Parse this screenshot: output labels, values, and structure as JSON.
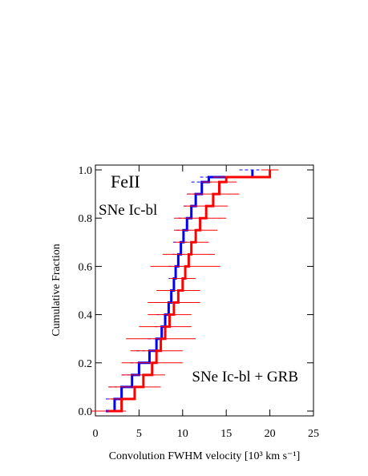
{
  "chart_data": {
    "type": "step",
    "annotation": "FeII",
    "xlabel": "Convolution FWHM velocity [10³ km s⁻¹]",
    "ylabel": "Cumulative Fraction",
    "xlim": [
      0,
      25
    ],
    "ylim": [
      -0.02,
      1.02
    ],
    "xticks": [
      0,
      5,
      10,
      15,
      20,
      25
    ],
    "yticks": [
      {
        "value": 0,
        "label": "0.0"
      },
      0.2,
      0.4,
      0.6,
      0.8,
      {
        "value": 1,
        "label": "1.0"
      }
    ],
    "series": [
      {
        "name": "SNe Ic-bl",
        "color": "#0000ff",
        "x": [
          1.2,
          2.2,
          3.0,
          4.2,
          5.0,
          6.2,
          7.0,
          7.6,
          8.0,
          8.4,
          8.7,
          9.0,
          9.2,
          9.5,
          9.8,
          10.1,
          10.5,
          11.0,
          11.5,
          12.2,
          13.0,
          18.0
        ],
        "y": [
          0.0,
          0.05,
          0.1,
          0.15,
          0.2,
          0.25,
          0.3,
          0.35,
          0.4,
          0.45,
          0.5,
          0.55,
          0.6,
          0.65,
          0.7,
          0.75,
          0.8,
          0.85,
          0.9,
          0.95,
          0.97,
          1.0
        ],
        "xerr": [
          0.8,
          1.0,
          1.5,
          1.2,
          1.0,
          1.5,
          1.0,
          0.8,
          1.0,
          0.8,
          0.7,
          0.6,
          0.8,
          0.7,
          0.9,
          0.8,
          1.0,
          0.9,
          1.0,
          1.2,
          1.0,
          1.5
        ]
      },
      {
        "name": "SNe Ic-bl + GRB",
        "color": "#ff0000",
        "x": [
          1.5,
          3.0,
          4.5,
          5.5,
          6.5,
          7.0,
          7.5,
          8.0,
          8.5,
          9.0,
          9.5,
          10.0,
          10.3,
          10.7,
          11.0,
          11.5,
          12.0,
          12.7,
          13.5,
          14.2,
          15.0,
          20.0
        ],
        "y": [
          0.0,
          0.05,
          0.1,
          0.15,
          0.2,
          0.25,
          0.3,
          0.35,
          0.4,
          0.45,
          0.5,
          0.55,
          0.6,
          0.65,
          0.7,
          0.75,
          0.8,
          0.85,
          0.9,
          0.95,
          0.97,
          1.0
        ],
        "xerr": [
          2.0,
          1.5,
          3.0,
          2.5,
          3.5,
          3.0,
          4.0,
          3.0,
          2.5,
          3.0,
          2.5,
          1.5,
          4.0,
          3.0,
          2.0,
          2.5,
          3.0,
          2.5,
          3.0,
          2.0,
          1.5,
          1.0
        ]
      }
    ]
  }
}
